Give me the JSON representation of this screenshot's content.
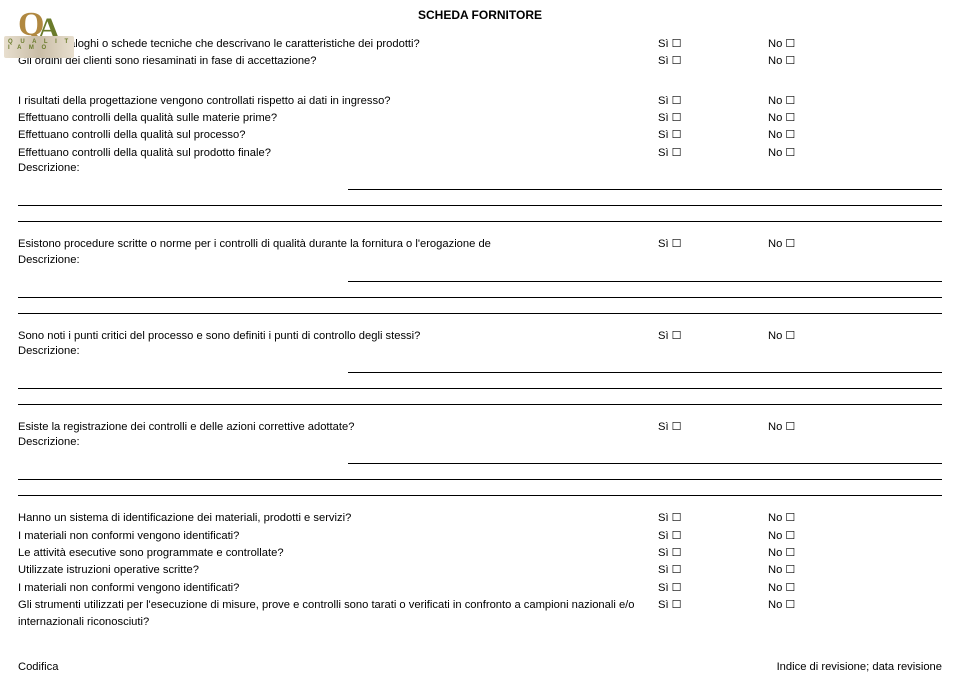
{
  "title": "SCHEDA FORNITORE",
  "yes": "Sì ☐",
  "no": "No ☐",
  "desc_label": "Descrizione:",
  "logo_small": "Q U A L I T I A M O",
  "group1": [
    "Hanno cataloghi o schede tecniche che descrivano le caratteristiche dei prodotti?",
    "Gli ordini dei clienti sono riesaminati in fase di accettazione?"
  ],
  "group2": [
    "I risultati della progettazione vengono controllati rispetto ai dati in ingresso?",
    "Effettuano controlli della qualità sulle materie prime?",
    "Effettuano controlli della qualità sul processo?",
    "Effettuano controlli della qualità sul prodotto finale?"
  ],
  "block3_q": "Esistono procedure scritte o norme per i controlli di qualità durante la fornitura o l'erogazione de",
  "block4_q": "Sono noti i punti critici del processo e sono definiti i punti di controllo degli stessi?",
  "block5_q": "Esiste la registrazione dei controlli e delle azioni correttive adottate?",
  "group6": [
    "Hanno un sistema di identificazione dei materiali, prodotti e servizi?",
    "I materiali non conformi vengono identificati?",
    "Le attività esecutive sono programmate e controllate?",
    "Utilizzate istruzioni operative scritte?",
    "I materiali non conformi vengono identificati?"
  ],
  "group6_twoline": "Gli strumenti utilizzati per l'esecuzione di misure, prove e controlli sono tarati o verificati in confronto a campioni nazionali e/o internazionali riconosciuti?",
  "footer_left": "Codifica",
  "footer_right": "Indice di revisione; data revisione"
}
